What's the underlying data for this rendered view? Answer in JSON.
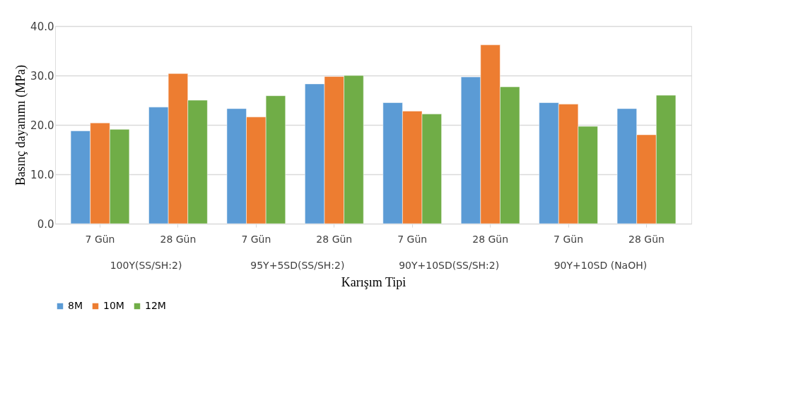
{
  "chart_data": {
    "type": "bar",
    "xlabel": "Karışım Tipi",
    "ylabel": "Basınç dayanımı  (MPa)",
    "categories": [
      "7 Gün",
      "28 Gün",
      "7 Gün",
      "28 Gün",
      "7 Gün",
      "28 Gün",
      "7 Gün",
      "28 Gün"
    ],
    "annotations": [
      "100Y(SS/SH:2)",
      "95Y+5SD(SS/SH:2)",
      "90Y+10SD(SS/SH:2)",
      "90Y+10SD (NaOH)"
    ],
    "series": [
      {
        "name": "8M",
        "color": "#5b9bd5",
        "values": [
          18.8,
          23.6,
          23.3,
          28.3,
          24.5,
          29.7,
          24.5,
          23.3
        ]
      },
      {
        "name": "10M",
        "color": "#ed7d31",
        "values": [
          20.4,
          30.4,
          21.6,
          29.8,
          22.8,
          36.2,
          24.2,
          18.0
        ]
      },
      {
        "name": "12M",
        "color": "#70ad47",
        "values": [
          19.1,
          25.0,
          25.9,
          30.0,
          22.2,
          27.7,
          19.7,
          26.0
        ]
      }
    ],
    "ylim": [
      0,
      40
    ],
    "yticks": [
      {
        "value": 0,
        "label": "0.0"
      },
      {
        "value": 10,
        "label": "10.0"
      },
      {
        "value": 20,
        "label": "20.0"
      },
      {
        "value": 30,
        "label": "30.0"
      },
      {
        "value": 40,
        "label": "40.0"
      }
    ],
    "grid": "y",
    "legend": "bottom"
  }
}
